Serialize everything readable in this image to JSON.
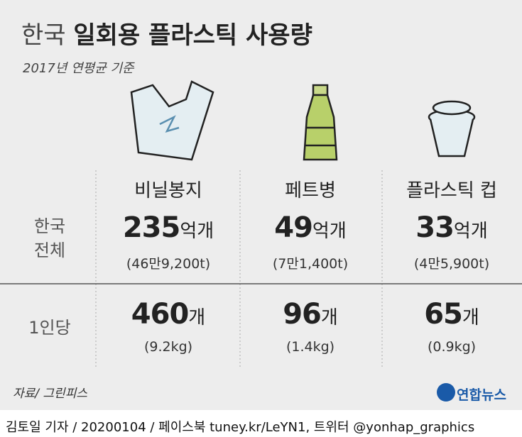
{
  "title": {
    "light": "한국",
    "bold": "일회용 플라스틱 사용량"
  },
  "subtitle": "2017년 연평균 기준",
  "table": {
    "columns": [
      "비닐봉지",
      "페트병",
      "플라스틱 컵"
    ],
    "rows": [
      {
        "label": [
          "한국",
          "전체"
        ],
        "cells": [
          {
            "number": "235",
            "unit": "억개",
            "detail": "(46만9,200t)"
          },
          {
            "number": "49",
            "unit": "억개",
            "detail": "(7만1,400t)"
          },
          {
            "number": "33",
            "unit": "억개",
            "detail": "(4만5,900t)"
          }
        ]
      },
      {
        "label": [
          "1인당"
        ],
        "cells": [
          {
            "number": "460",
            "unit": "개",
            "detail": "(9.2kg)"
          },
          {
            "number": "96",
            "unit": "개",
            "detail": "(1.4kg)"
          },
          {
            "number": "65",
            "unit": "개",
            "detail": "(0.9kg)"
          }
        ]
      }
    ]
  },
  "source": "자료/ 그린피스",
  "logo": "연합뉴스",
  "credit": "김토일 기자 / 20200104 / 페이스북 tuney.kr/LeYN1, 트위터 @yonhap_graphics"
}
